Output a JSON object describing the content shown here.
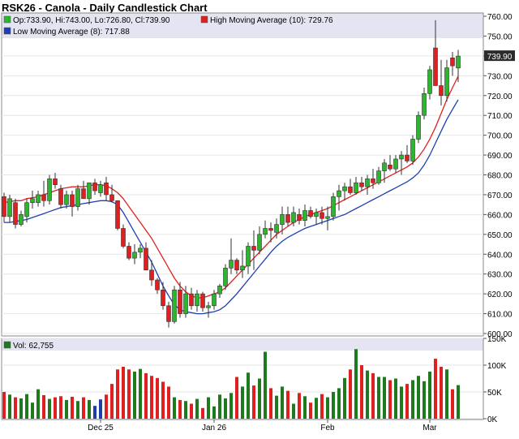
{
  "colors": {
    "up": "#2db52d",
    "down": "#e02020",
    "vol_up": "#1f7a1f",
    "vol_down": "#e02020",
    "vol_special": "#1f3fa8",
    "ma_high": "#e02020",
    "ma_low": "#1f3fb0",
    "legend_band": "#e4e4f2",
    "price_tag_bg": "#2b2b2b"
  },
  "chart_data": {
    "type": "candlestick",
    "title": "RSK26 - Canola - Daily Candlestick Chart",
    "legend": {
      "ohlc": "Op:733.90, Hi:743.00, Lo:726.80, Cl:739.90",
      "high_ma": "High Moving Average (10): 729.76",
      "low_ma": "Low Moving Average (8): 717.88",
      "volume": "Vol: 62,755"
    },
    "last_price_label": "739.90",
    "last_price": 739.9,
    "price_axis": {
      "min": 600,
      "max": 760,
      "ticks": [
        "600.00",
        "610.00",
        "620.00",
        "630.00",
        "640.00",
        "650.00",
        "660.00",
        "670.00",
        "680.00",
        "690.00",
        "700.00",
        "710.00",
        "720.00",
        "730.00",
        "740.00",
        "750.00",
        "760.00"
      ]
    },
    "volume_axis": {
      "min": 0,
      "max": 150000,
      "tick_values": [
        0,
        50000,
        100000,
        150000
      ],
      "tick_labels": [
        "0K",
        "50K",
        "100K",
        "150K"
      ]
    },
    "x_labels": [
      {
        "label": "Dec 25",
        "index": 17
      },
      {
        "label": "Jan 26",
        "index": 37
      },
      {
        "label": "Feb",
        "index": 57
      },
      {
        "label": "Mar",
        "index": 75
      }
    ],
    "candles": [
      {
        "o": 669,
        "h": 671,
        "l": 656,
        "c": 659,
        "v": 50000
      },
      {
        "o": 659,
        "h": 670,
        "l": 656,
        "c": 668,
        "v": 45000
      },
      {
        "o": 666,
        "h": 668,
        "l": 653,
        "c": 655,
        "v": 40000
      },
      {
        "o": 655,
        "h": 662,
        "l": 654,
        "c": 660,
        "v": 38000
      },
      {
        "o": 659,
        "h": 668,
        "l": 656,
        "c": 666,
        "v": 46000
      },
      {
        "o": 666,
        "h": 672,
        "l": 663,
        "c": 668,
        "v": 30000
      },
      {
        "o": 666,
        "h": 672,
        "l": 664,
        "c": 670,
        "v": 55000
      },
      {
        "o": 670,
        "h": 677,
        "l": 664,
        "c": 667,
        "v": 44000
      },
      {
        "o": 667,
        "h": 680,
        "l": 665,
        "c": 678,
        "v": 37000
      },
      {
        "o": 678,
        "h": 681,
        "l": 673,
        "c": 675,
        "v": 40000
      },
      {
        "o": 673,
        "h": 675,
        "l": 663,
        "c": 665,
        "v": 42000
      },
      {
        "o": 665,
        "h": 672,
        "l": 663,
        "c": 670,
        "v": 35000
      },
      {
        "o": 670,
        "h": 672,
        "l": 659,
        "c": 664,
        "v": 41000
      },
      {
        "o": 664,
        "h": 675,
        "l": 662,
        "c": 673,
        "v": 33000
      },
      {
        "o": 673,
        "h": 677,
        "l": 668,
        "c": 668,
        "v": 40000
      },
      {
        "o": 668,
        "h": 676,
        "l": 665,
        "c": 676,
        "v": 35000
      },
      {
        "o": 676,
        "h": 678,
        "l": 670,
        "c": 672,
        "v": 24000
      },
      {
        "o": 671,
        "h": 677,
        "l": 669,
        "c": 675,
        "v": 36000
      },
      {
        "o": 676,
        "h": 679,
        "l": 667,
        "c": 670,
        "v": 45000
      },
      {
        "o": 670,
        "h": 675,
        "l": 666,
        "c": 667,
        "v": 65000
      },
      {
        "o": 667,
        "h": 667,
        "l": 652,
        "c": 653,
        "v": 92000
      },
      {
        "o": 653,
        "h": 655,
        "l": 643,
        "c": 644,
        "v": 97000
      },
      {
        "o": 644,
        "h": 646,
        "l": 637,
        "c": 638,
        "v": 92000
      },
      {
        "o": 638,
        "h": 645,
        "l": 635,
        "c": 641,
        "v": 88000
      },
      {
        "o": 641,
        "h": 645,
        "l": 638,
        "c": 643,
        "v": 93000
      },
      {
        "o": 643,
        "h": 646,
        "l": 632,
        "c": 632,
        "v": 85000
      },
      {
        "o": 632,
        "h": 637,
        "l": 624,
        "c": 627,
        "v": 80000
      },
      {
        "o": 627,
        "h": 628,
        "l": 620,
        "c": 622,
        "v": 76000
      },
      {
        "o": 622,
        "h": 626,
        "l": 612,
        "c": 614,
        "v": 69000
      },
      {
        "o": 614,
        "h": 616,
        "l": 603,
        "c": 606,
        "v": 60000
      },
      {
        "o": 606,
        "h": 624,
        "l": 605,
        "c": 622,
        "v": 40000
      },
      {
        "o": 622,
        "h": 626,
        "l": 608,
        "c": 610,
        "v": 35000
      },
      {
        "o": 610,
        "h": 624,
        "l": 608,
        "c": 620,
        "v": 33000
      },
      {
        "o": 620,
        "h": 623,
        "l": 612,
        "c": 614,
        "v": 28000
      },
      {
        "o": 614,
        "h": 622,
        "l": 611,
        "c": 620,
        "v": 37000
      },
      {
        "o": 620,
        "h": 621,
        "l": 611,
        "c": 613,
        "v": 20000
      },
      {
        "o": 613,
        "h": 616,
        "l": 608,
        "c": 614,
        "v": 40000
      },
      {
        "o": 614,
        "h": 622,
        "l": 612,
        "c": 620,
        "v": 23000
      },
      {
        "o": 620,
        "h": 625,
        "l": 618,
        "c": 624,
        "v": 45000
      },
      {
        "o": 624,
        "h": 635,
        "l": 622,
        "c": 633,
        "v": 38000
      },
      {
        "o": 633,
        "h": 648,
        "l": 630,
        "c": 637,
        "v": 48000
      },
      {
        "o": 637,
        "h": 638,
        "l": 630,
        "c": 632,
        "v": 78000
      },
      {
        "o": 632,
        "h": 642,
        "l": 628,
        "c": 634,
        "v": 60000
      },
      {
        "o": 634,
        "h": 646,
        "l": 630,
        "c": 644,
        "v": 86000
      },
      {
        "o": 644,
        "h": 652,
        "l": 632,
        "c": 642,
        "v": 62000
      },
      {
        "o": 642,
        "h": 654,
        "l": 640,
        "c": 650,
        "v": 75000
      },
      {
        "o": 650,
        "h": 657,
        "l": 648,
        "c": 653,
        "v": 125000
      },
      {
        "o": 653,
        "h": 656,
        "l": 646,
        "c": 652,
        "v": 57000
      },
      {
        "o": 651,
        "h": 658,
        "l": 648,
        "c": 655,
        "v": 43000
      },
      {
        "o": 655,
        "h": 664,
        "l": 650,
        "c": 660,
        "v": 60000
      },
      {
        "o": 660,
        "h": 664,
        "l": 654,
        "c": 656,
        "v": 52000
      },
      {
        "o": 656,
        "h": 664,
        "l": 654,
        "c": 661,
        "v": 28000
      },
      {
        "o": 660,
        "h": 663,
        "l": 655,
        "c": 657,
        "v": 48000
      },
      {
        "o": 657,
        "h": 665,
        "l": 654,
        "c": 662,
        "v": 42000
      },
      {
        "o": 662,
        "h": 664,
        "l": 658,
        "c": 659,
        "v": 30000
      },
      {
        "o": 659,
        "h": 663,
        "l": 655,
        "c": 661,
        "v": 39000
      },
      {
        "o": 661,
        "h": 664,
        "l": 655,
        "c": 658,
        "v": 46000
      },
      {
        "o": 658,
        "h": 664,
        "l": 652,
        "c": 659,
        "v": 40000
      },
      {
        "o": 659,
        "h": 671,
        "l": 657,
        "c": 669,
        "v": 50000
      },
      {
        "o": 669,
        "h": 675,
        "l": 662,
        "c": 672,
        "v": 57000
      },
      {
        "o": 672,
        "h": 676,
        "l": 667,
        "c": 674,
        "v": 76000
      },
      {
        "o": 674,
        "h": 678,
        "l": 670,
        "c": 671,
        "v": 92000
      },
      {
        "o": 671,
        "h": 679,
        "l": 670,
        "c": 676,
        "v": 130000
      },
      {
        "o": 676,
        "h": 679,
        "l": 672,
        "c": 674,
        "v": 100000
      },
      {
        "o": 674,
        "h": 680,
        "l": 670,
        "c": 678,
        "v": 90000
      },
      {
        "o": 678,
        "h": 683,
        "l": 673,
        "c": 676,
        "v": 85000
      },
      {
        "o": 676,
        "h": 684,
        "l": 675,
        "c": 682,
        "v": 78000
      },
      {
        "o": 682,
        "h": 688,
        "l": 676,
        "c": 686,
        "v": 78000
      },
      {
        "o": 685,
        "h": 690,
        "l": 682,
        "c": 683,
        "v": 72000
      },
      {
        "o": 683,
        "h": 690,
        "l": 681,
        "c": 688,
        "v": 75000
      },
      {
        "o": 688,
        "h": 692,
        "l": 680,
        "c": 690,
        "v": 60000
      },
      {
        "o": 690,
        "h": 695,
        "l": 686,
        "c": 687,
        "v": 65000
      },
      {
        "o": 687,
        "h": 700,
        "l": 685,
        "c": 698,
        "v": 72000
      },
      {
        "o": 698,
        "h": 712,
        "l": 696,
        "c": 710,
        "v": 80000
      },
      {
        "o": 710,
        "h": 724,
        "l": 708,
        "c": 721,
        "v": 70000
      },
      {
        "o": 721,
        "h": 735,
        "l": 718,
        "c": 733,
        "v": 88000
      },
      {
        "o": 744,
        "h": 758,
        "l": 725,
        "c": 725,
        "v": 112000
      },
      {
        "o": 725,
        "h": 738,
        "l": 715,
        "c": 720,
        "v": 97000
      },
      {
        "o": 720,
        "h": 738,
        "l": 717,
        "c": 734,
        "v": 92000
      },
      {
        "o": 739,
        "h": 742,
        "l": 730,
        "c": 735,
        "v": 55000
      },
      {
        "o": 733.9,
        "h": 743,
        "l": 726.8,
        "c": 739.9,
        "v": 62755
      }
    ],
    "ma_high": [
      666,
      666.5,
      667,
      667,
      668,
      668.5,
      669,
      670,
      671,
      672,
      673,
      673.5,
      674,
      674,
      674,
      674.5,
      675,
      675,
      674.5,
      673,
      671,
      668,
      664,
      660,
      656,
      652,
      648,
      643,
      638,
      633,
      628,
      624,
      621,
      619,
      618,
      618,
      619,
      620,
      621,
      623,
      626,
      629,
      632,
      635,
      638,
      641,
      644,
      647,
      650,
      652,
      654,
      656,
      657.5,
      659,
      660,
      661,
      662,
      663,
      664.5,
      666,
      667.5,
      669,
      670.5,
      672,
      673.5,
      675,
      676.5,
      678,
      679.5,
      681,
      682.5,
      684,
      686,
      689,
      693,
      698,
      704,
      711,
      718,
      724,
      729.76
    ],
    "ma_low": [
      656,
      656,
      656.5,
      657,
      657.5,
      658.5,
      659.5,
      660.5,
      661.5,
      662.5,
      663.5,
      664,
      664.5,
      665,
      665.5,
      666,
      666.5,
      667,
      667,
      666.5,
      665,
      661,
      656,
      651,
      646,
      641,
      636,
      630,
      624,
      619,
      614.5,
      612,
      611,
      610.5,
      610,
      610,
      610.5,
      611,
      612,
      614,
      617,
      620,
      623.5,
      627,
      630.5,
      634,
      637.5,
      641,
      644,
      646.5,
      648.5,
      650,
      651.5,
      653,
      654,
      655,
      656,
      657,
      658,
      659,
      660,
      661.5,
      663,
      664.5,
      666,
      667.5,
      669,
      670.5,
      672,
      673.5,
      675,
      676.5,
      678.5,
      681,
      685,
      690,
      696,
      702,
      708,
      713,
      717.88
    ]
  }
}
